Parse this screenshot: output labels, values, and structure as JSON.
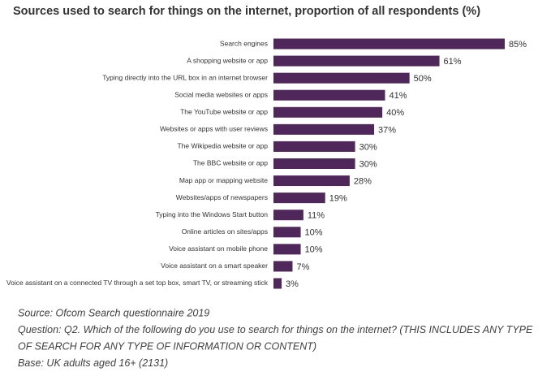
{
  "chart_data": {
    "type": "bar",
    "orientation": "horizontal",
    "title": "Sources used to search for things on the internet, proportion of all respondents (%)",
    "categories": [
      "Search engines",
      "A shopping website or app",
      "Typing directly into the URL box in an internet browser",
      "Social media websites or apps",
      "The YouTube website or app",
      "Websites or apps with user reviews",
      "The Wikipedia website or app",
      "The BBC website or app",
      "Map app or mapping website",
      "Websites/apps of newspapers",
      "Typing into the Windows Start button",
      "Online articles on sites/apps",
      "Voice assistant on mobile phone",
      "Voice assistant on a smart speaker",
      "Voice assistant on a connected TV through a set top box, smart TV, or streaming stick"
    ],
    "values": [
      85,
      61,
      50,
      41,
      40,
      37,
      30,
      30,
      28,
      19,
      11,
      10,
      10,
      7,
      3
    ],
    "value_labels": [
      "85%",
      "61%",
      "50%",
      "41%",
      "40%",
      "37%",
      "30%",
      "30%",
      "28%",
      "19%",
      "11%",
      "10%",
      "10%",
      "7%",
      "3%"
    ],
    "color": "#50275a",
    "notes": [
      "Source: Ofcom Search questionnaire 2019",
      "Question: Q2. Which of the following do you use to search for things on the internet? (THIS INCLUDES ANY TYPE",
      "OF SEARCH FOR ANY TYPE OF INFORMATION OR CONTENT)",
      "Base: UK adults aged 16+ (2131)"
    ]
  }
}
